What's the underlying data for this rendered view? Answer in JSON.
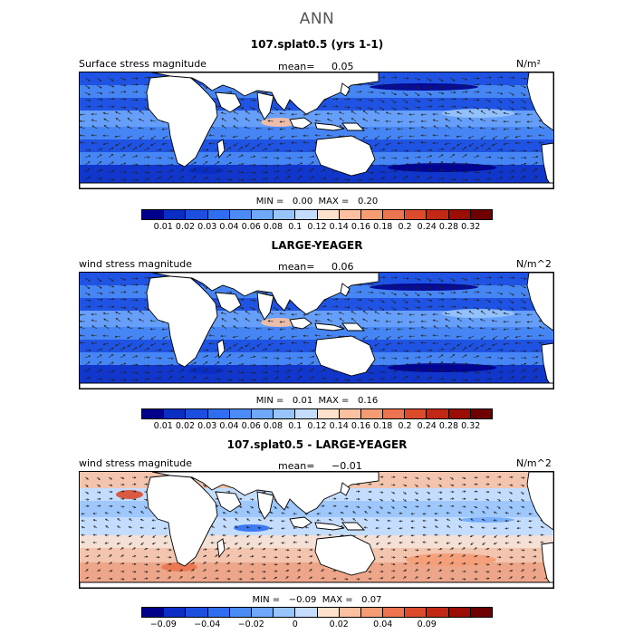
{
  "title": "ANN",
  "colors": {
    "abs_scale": [
      "#00008b",
      "#0a2dc4",
      "#1c4fe0",
      "#2f6ef0",
      "#4a8bf5",
      "#6fa8fa",
      "#98c4fc",
      "#c4ddfe",
      "#fde1cc",
      "#fbc0a0",
      "#f59c74",
      "#ec744e",
      "#dc4b2c",
      "#c22814",
      "#9b0d05",
      "#6e0000"
    ],
    "diff_scale": [
      "#00008b",
      "#0a2dc4",
      "#1c4fe0",
      "#2f6ef0",
      "#4a8bf5",
      "#6fa8fa",
      "#98c4fc",
      "#c4ddfe",
      "#fde1cc",
      "#fbc0a0",
      "#f59c74",
      "#ec744e",
      "#dc4b2c",
      "#c22814",
      "#9b0d05",
      "#6e0000"
    ],
    "land": "#ffffff"
  },
  "panels": [
    {
      "title": "107.splat0.5 (yrs 1-1)",
      "left_label": "Surface stress magnitude",
      "mean_label": "mean=",
      "mean_value": "0.05",
      "units": "N/m²",
      "min_label": "MIN =",
      "min_value": "0.00",
      "max_label": "MAX =",
      "max_value": "0.20",
      "ticks": [
        "0.01",
        "0.02",
        "0.03",
        "0.04",
        "0.06",
        "0.08",
        "0.1",
        "0.12",
        "0.14",
        "0.16",
        "0.18",
        "0.2",
        "0.24",
        "0.28",
        "0.32"
      ]
    },
    {
      "title": "LARGE-YEAGER",
      "left_label": "wind stress magnitude",
      "mean_label": "mean=",
      "mean_value": "0.06",
      "units": "N/m^2",
      "min_label": "MIN =",
      "min_value": "0.01",
      "max_label": "MAX =",
      "max_value": "0.16",
      "ticks": [
        "0.01",
        "0.02",
        "0.03",
        "0.04",
        "0.06",
        "0.08",
        "0.1",
        "0.12",
        "0.14",
        "0.16",
        "0.18",
        "0.2",
        "0.24",
        "0.28",
        "0.32"
      ]
    },
    {
      "title": "107.splat0.5 - LARGE-YEAGER",
      "left_label": "wind stress magnitude",
      "mean_label": "mean=",
      "mean_value": "−0.01",
      "units": "N/m^2",
      "min_label": "MIN =",
      "min_value": "−0.09",
      "max_label": "MAX =",
      "max_value": "0.07",
      "ticks": [
        "−0.09",
        "",
        "−0.04",
        "",
        "−0.02",
        "",
        "0",
        "",
        "0.02",
        "",
        "0.04",
        "",
        "0.09",
        "",
        ""
      ]
    }
  ],
  "chart_data": [
    {
      "type": "heatmap",
      "title": "107.splat0.5 (yrs 1-1)",
      "field": "Surface stress magnitude",
      "units": "N/m²",
      "mean": 0.05,
      "min": 0.0,
      "max": 0.2,
      "levels": [
        0.01,
        0.02,
        0.03,
        0.04,
        0.06,
        0.08,
        0.1,
        0.12,
        0.14,
        0.16,
        0.18,
        0.2,
        0.24,
        0.28,
        0.32
      ],
      "overlay": "wind stress vectors"
    },
    {
      "type": "heatmap",
      "title": "LARGE-YEAGER",
      "field": "wind stress magnitude",
      "units": "N/m^2",
      "mean": 0.06,
      "min": 0.01,
      "max": 0.16,
      "levels": [
        0.01,
        0.02,
        0.03,
        0.04,
        0.06,
        0.08,
        0.1,
        0.12,
        0.14,
        0.16,
        0.18,
        0.2,
        0.24,
        0.28,
        0.32
      ],
      "overlay": "wind stress vectors"
    },
    {
      "type": "heatmap",
      "title": "107.splat0.5 - LARGE-YEAGER",
      "field": "wind stress magnitude",
      "units": "N/m^2",
      "mean": -0.01,
      "min": -0.09,
      "max": 0.07,
      "levels": [
        -0.09,
        -0.04,
        -0.02,
        0,
        0.02,
        0.04,
        0.09
      ],
      "overlay": "wind stress difference vectors"
    }
  ]
}
